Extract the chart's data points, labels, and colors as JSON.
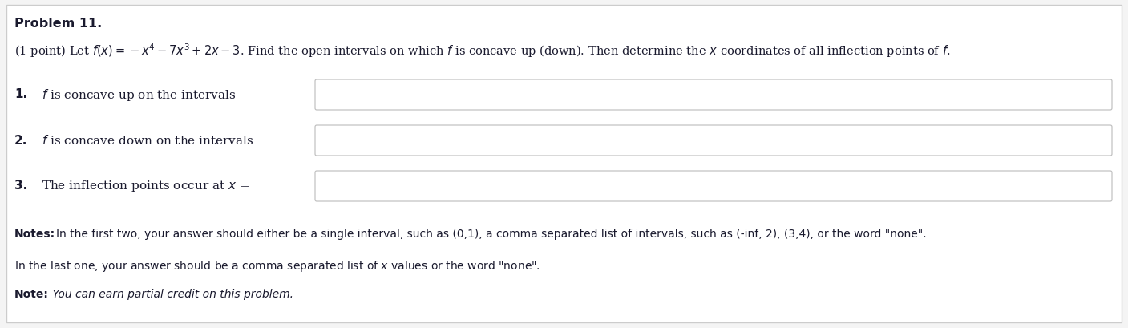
{
  "title": "Problem 11.",
  "background_color": "#f4f4f4",
  "panel_color": "#ffffff",
  "border_color": "#cccccc",
  "text_color": "#1a1a2e",
  "input_box_color": "#ffffff",
  "input_box_border": "#bbbbbb",
  "notes_color": "#222244",
  "item1_label": "1.",
  "item1_text": "$f$ is concave up on the intervals",
  "item2_label": "2.",
  "item2_text": "$f$ is concave down on the intervals",
  "item3_label": "3.",
  "item3_text": "The inflection points occur at $x$ =",
  "notes_bold": "Notes:",
  "notes_text": " In the first two, your answer should either be a single interval, such as (0,1), a comma separated list of intervals, such as (-inf, 2), (3,4), or the word \"none\".",
  "line_last1": "In the last one, your answer should be a comma separated list of $x$ values or the word \"none\".",
  "note_bold": "Note:",
  "note_italic": " You can earn partial credit on this problem.",
  "figwidth": 14.07,
  "figheight": 4.09,
  "dpi": 100
}
